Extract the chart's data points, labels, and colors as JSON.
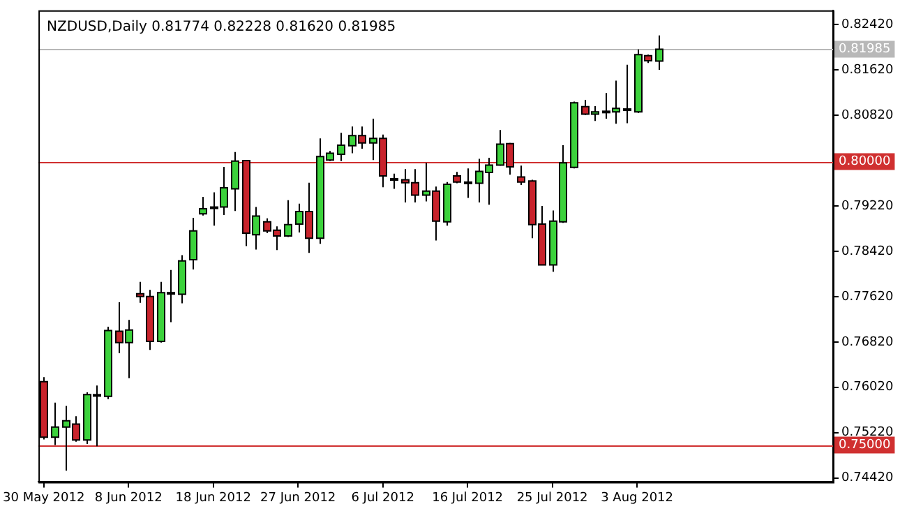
{
  "chart_data": {
    "type": "candlestick",
    "title": "NZDUSD,Daily 0.81774 0.82228 0.81620 0.81985",
    "categories": [
      "30 May 2012",
      null,
      null,
      null,
      null,
      null,
      null,
      null,
      "8 Jun 2012",
      null,
      null,
      null,
      null,
      null,
      null,
      null,
      "18 Jun 2012",
      null,
      null,
      null,
      null,
      null,
      null,
      null,
      "27 Jun 2012",
      null,
      null,
      null,
      null,
      null,
      null,
      null,
      "6 Jul 2012",
      null,
      null,
      null,
      null,
      null,
      null,
      null,
      "16 Jul 2012",
      null,
      null,
      null,
      null,
      null,
      null,
      null,
      "25 Jul 2012",
      null,
      null,
      null,
      null,
      null,
      null,
      null,
      "3 Aug 2012",
      null,
      null,
      null,
      null,
      null,
      null,
      null,
      null,
      null,
      null,
      null,
      null,
      null,
      null,
      null,
      null,
      null,
      null
    ],
    "ohlc": [
      [
        0.7612,
        0.762,
        0.751,
        0.7514
      ],
      [
        0.7514,
        0.7575,
        0.75,
        0.7532
      ],
      [
        0.7532,
        0.7569,
        0.7455,
        0.7543
      ],
      [
        0.7537,
        0.7551,
        0.7506,
        0.7509
      ],
      [
        0.7509,
        0.7593,
        0.7502,
        0.7589
      ],
      [
        0.7587,
        0.7605,
        0.7498,
        0.7589
      ],
      [
        0.7586,
        0.7709,
        0.7581,
        0.7702
      ],
      [
        0.7701,
        0.7752,
        0.7662,
        0.7681
      ],
      [
        0.7681,
        0.7721,
        0.7618,
        0.7703
      ],
      [
        0.7767,
        0.7788,
        0.7751,
        0.7762
      ],
      [
        0.7762,
        0.7774,
        0.7668,
        0.7683
      ],
      [
        0.7683,
        0.7788,
        0.7681,
        0.7769
      ],
      [
        0.7767,
        0.7809,
        0.7717,
        0.7769
      ],
      [
        0.7766,
        0.7835,
        0.775,
        0.7825
      ],
      [
        0.7827,
        0.7901,
        0.781,
        0.7878
      ],
      [
        0.7908,
        0.7938,
        0.7905,
        0.7917
      ],
      [
        0.7918,
        0.7946,
        0.7887,
        0.792
      ],
      [
        0.792,
        0.7991,
        0.7906,
        0.7954
      ],
      [
        0.7952,
        0.8017,
        0.7913,
        0.8001
      ],
      [
        0.8002,
        0.8003,
        0.7851,
        0.7874
      ],
      [
        0.7871,
        0.792,
        0.7845,
        0.7904
      ],
      [
        0.7894,
        0.79,
        0.7874,
        0.7878
      ],
      [
        0.7879,
        0.7886,
        0.7844,
        0.7869
      ],
      [
        0.7869,
        0.7932,
        0.7867,
        0.7889
      ],
      [
        0.789,
        0.7926,
        0.7875,
        0.7912
      ],
      [
        0.7912,
        0.7963,
        0.7839,
        0.7865
      ],
      [
        0.7865,
        0.8041,
        0.7855,
        0.8009
      ],
      [
        0.8003,
        0.8019,
        0.8001,
        0.8015
      ],
      [
        0.8013,
        0.8051,
        0.8001,
        0.8029
      ],
      [
        0.8028,
        0.8062,
        0.8015,
        0.8046
      ],
      [
        0.8046,
        0.8062,
        0.8023,
        0.8033
      ],
      [
        0.8033,
        0.8076,
        0.8003,
        0.8041
      ],
      [
        0.8041,
        0.8048,
        0.7955,
        0.7975
      ],
      [
        0.797,
        0.7979,
        0.7952,
        0.7968
      ],
      [
        0.7968,
        0.7987,
        0.7928,
        0.7963
      ],
      [
        0.7963,
        0.7987,
        0.7928,
        0.7941
      ],
      [
        0.7941,
        0.7998,
        0.793,
        0.7948
      ],
      [
        0.7948,
        0.7956,
        0.7861,
        0.7895
      ],
      [
        0.7894,
        0.7964,
        0.7887,
        0.796
      ],
      [
        0.7975,
        0.7982,
        0.7962,
        0.7964
      ],
      [
        0.7964,
        0.7988,
        0.7936,
        0.7963
      ],
      [
        0.7962,
        0.8005,
        0.7928,
        0.7983
      ],
      [
        0.7981,
        0.8007,
        0.7924,
        0.7994
      ],
      [
        0.7994,
        0.8056,
        0.7993,
        0.8031
      ],
      [
        0.8032,
        0.8033,
        0.7977,
        0.7991
      ],
      [
        0.7973,
        0.7993,
        0.7959,
        0.7964
      ],
      [
        0.7966,
        0.7968,
        0.7865,
        0.7889
      ],
      [
        0.789,
        0.7922,
        0.7818,
        0.7818
      ],
      [
        0.7818,
        0.7914,
        0.7806,
        0.7895
      ],
      [
        0.7894,
        0.8029,
        0.7892,
        0.7998
      ],
      [
        0.799,
        0.8106,
        0.7988,
        0.8104
      ],
      [
        0.8097,
        0.8109,
        0.8082,
        0.8084
      ],
      [
        0.8084,
        0.8098,
        0.8072,
        0.8088
      ],
      [
        0.8088,
        0.8121,
        0.8076,
        0.8089
      ],
      [
        0.8088,
        0.8143,
        0.8067,
        0.8094
      ],
      [
        0.8092,
        0.8171,
        0.8068,
        0.8093
      ],
      [
        0.8088,
        0.8198,
        0.8086,
        0.8189
      ],
      [
        0.8187,
        0.8189,
        0.8174,
        0.8178
      ],
      [
        0.81774,
        0.82228,
        0.8162,
        0.81985
      ],
      null,
      null,
      null,
      null,
      null,
      null,
      null,
      null,
      null,
      null,
      null,
      null,
      null,
      null,
      null,
      null
    ],
    "colors": [
      "#c8232c",
      "#3cd23c",
      "#3cd23c",
      "#c8232c",
      "#3cd23c",
      "#3cd23c",
      "#3cd23c",
      "#c8232c",
      "#3cd23c",
      "#c8232c",
      "#c8232c",
      "#3cd23c",
      "#3cd23c",
      "#3cd23c",
      "#3cd23c",
      "#3cd23c",
      "#3cd23c",
      "#3cd23c",
      "#3cd23c",
      "#c8232c",
      "#3cd23c",
      "#c8232c",
      "#c8232c",
      "#3cd23c",
      "#3cd23c",
      "#c8232c",
      "#3cd23c",
      "#3cd23c",
      "#3cd23c",
      "#3cd23c",
      "#c8232c",
      "#3cd23c",
      "#c8232c",
      "#c8232c",
      "#c8232c",
      "#c8232c",
      "#3cd23c",
      "#c8232c",
      "#3cd23c",
      "#c8232c",
      "#c8232c",
      "#3cd23c",
      "#3cd23c",
      "#3cd23c",
      "#c8232c",
      "#c8232c",
      "#c8232c",
      "#c8232c",
      "#3cd23c",
      "#3cd23c",
      "#3cd23c",
      "#c8232c",
      "#3cd23c",
      "#3cd23c",
      "#3cd23c",
      "#3cd23c",
      "#3cd23c",
      "#c8232c",
      "#3cd23c",
      null,
      null,
      null,
      null,
      null,
      null,
      null,
      null,
      null,
      null,
      null,
      null,
      null,
      null,
      null,
      null
    ],
    "ylim": [
      0.7435,
      0.8267
    ],
    "yticks": [
      {
        "value": 0.8242,
        "label": "0.82420"
      },
      {
        "value": 0.8162,
        "label": "0.81620"
      },
      {
        "value": 0.8082,
        "label": "0.80820"
      },
      {
        "value": 0.7922,
        "label": "0.79220"
      },
      {
        "value": 0.7842,
        "label": "0.78420"
      },
      {
        "value": 0.7762,
        "label": "0.77620"
      },
      {
        "value": 0.7682,
        "label": "0.76820"
      },
      {
        "value": 0.7602,
        "label": "0.76020"
      },
      {
        "value": 0.7522,
        "label": "0.75220"
      },
      {
        "value": 0.7442,
        "label": "0.74420"
      }
    ],
    "ref_lines": [
      {
        "axis": "y",
        "value": 0.8,
        "label": "0.80000",
        "color": "#d03030"
      },
      {
        "axis": "y",
        "value": 0.75,
        "label": "0.75000",
        "color": "#d03030"
      },
      {
        "axis": "y",
        "value": 0.81985,
        "label": "0.81985",
        "color": "#b8b8b8"
      }
    ],
    "grid": false,
    "legend": false
  }
}
